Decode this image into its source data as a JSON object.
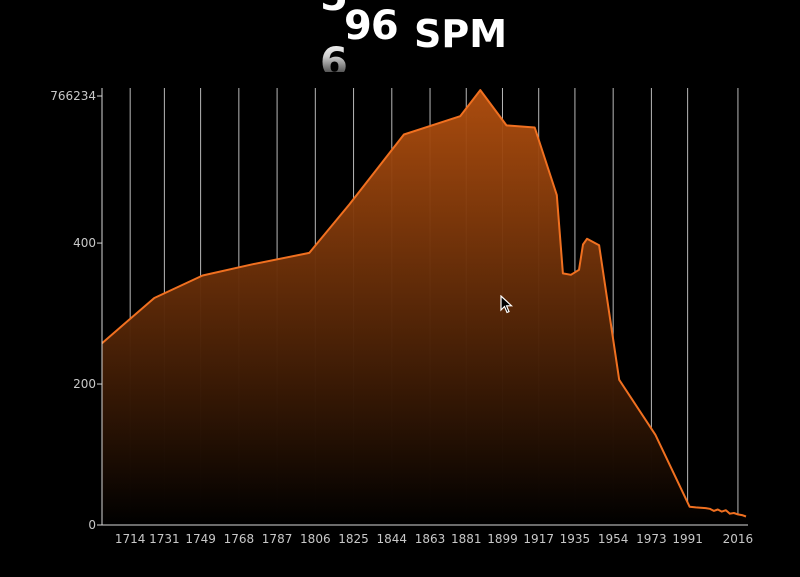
{
  "header": {
    "digit_prev": "5",
    "digit_current": "96",
    "digit_next": "6",
    "unit": "SPM"
  },
  "colors": {
    "background": "#000000",
    "line": "#f07020",
    "fill_top": "#b4500f",
    "fill_bottom": "#000000",
    "grid": "#d8d8d8",
    "text": "#c8c8c8"
  },
  "chart_data": {
    "type": "area",
    "title": "",
    "xlabel": "",
    "ylabel": "",
    "xlim": [
      1700,
      2021
    ],
    "ylim": [
      0,
      620
    ],
    "grid": true,
    "y_top_label": "766234",
    "y_ticks": [
      "0",
      "200",
      "400"
    ],
    "y_tick_values": [
      0,
      200,
      400
    ],
    "x_ticks": [
      1714,
      1731,
      1749,
      1768,
      1787,
      1806,
      1825,
      1844,
      1863,
      1881,
      1899,
      1917,
      1935,
      1954,
      1973,
      1991,
      2016
    ],
    "x": [
      1700,
      1726,
      1750,
      1775,
      1803,
      1823,
      1850,
      1878,
      1888,
      1901,
      1915,
      1926,
      1929,
      1933,
      1937,
      1939,
      1941,
      1947,
      1957,
      1975,
      1992,
      1995,
      2000,
      2002,
      2004,
      2006,
      2008,
      2010,
      2012,
      2014,
      2016,
      2018,
      2020
    ],
    "values": [
      258,
      322,
      354,
      370,
      386,
      455,
      554,
      580,
      617,
      567,
      564,
      468,
      357,
      355,
      362,
      398,
      406,
      397,
      206,
      128,
      26,
      25,
      24,
      23,
      20,
      22,
      19,
      21,
      16,
      17,
      15,
      14,
      12
    ]
  }
}
